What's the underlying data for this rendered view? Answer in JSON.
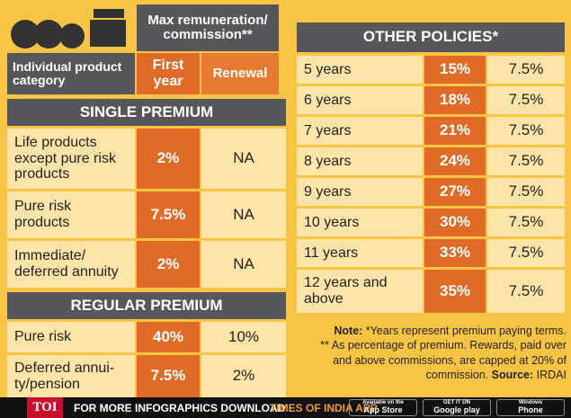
{
  "header": {
    "max_label": "Max remuneration/\ncommission**",
    "category_label": "Individual product\ncategory",
    "first_year": "First\nyear",
    "renewal": "Renewal"
  },
  "single_premium": {
    "title": "SINGLE PREMIUM",
    "rows": [
      [
        "Life products\nexcept pure risk\nproducts",
        "2%",
        "NA"
      ],
      [
        "Pure risk\nproducts",
        "7.5%",
        "NA"
      ],
      [
        "Immediate/\ndeferred annuity",
        "2%",
        "NA"
      ]
    ]
  },
  "regular_premium": {
    "title": "REGULAR PREMIUM",
    "rows": [
      [
        "Pure risk",
        "40%",
        "10%"
      ],
      [
        "Deferred annui-\nty/pension",
        "7.5%",
        "2%"
      ]
    ]
  },
  "other_policies": {
    "title": "OTHER POLICIES*",
    "rows": [
      [
        "5 years",
        "15%",
        "7.5%"
      ],
      [
        "6 years",
        "18%",
        "7.5%"
      ],
      [
        "7 years",
        "21%",
        "7.5%"
      ],
      [
        "8 years",
        "24%",
        "7.5%"
      ],
      [
        "9 years",
        "27%",
        "7.5%"
      ],
      [
        "10 years",
        "30%",
        "7.5%"
      ],
      [
        "11 years",
        "33%",
        "7.5%"
      ],
      [
        "12 years and\nabove",
        "35%",
        "7.5%"
      ]
    ]
  },
  "note": {
    "label": "Note:",
    "line1": "*Years represent premium paying terms.",
    "line2": "** As percentage of premium. Rewards, paid over and above commissions, are capped at 20% of commission.",
    "source_label": "Source:",
    "source": "IRDAI"
  },
  "footer": {
    "logo": "TOI",
    "text": "FOR MORE  INFOGRAPHICS DOWNLOAD",
    "app": "TIMES OF INDIA APP",
    "badges": [
      [
        "Available on the",
        "App Store"
      ],
      [
        "GET IT ON",
        "Google play"
      ],
      [
        "Windows",
        "Phone"
      ]
    ]
  }
}
